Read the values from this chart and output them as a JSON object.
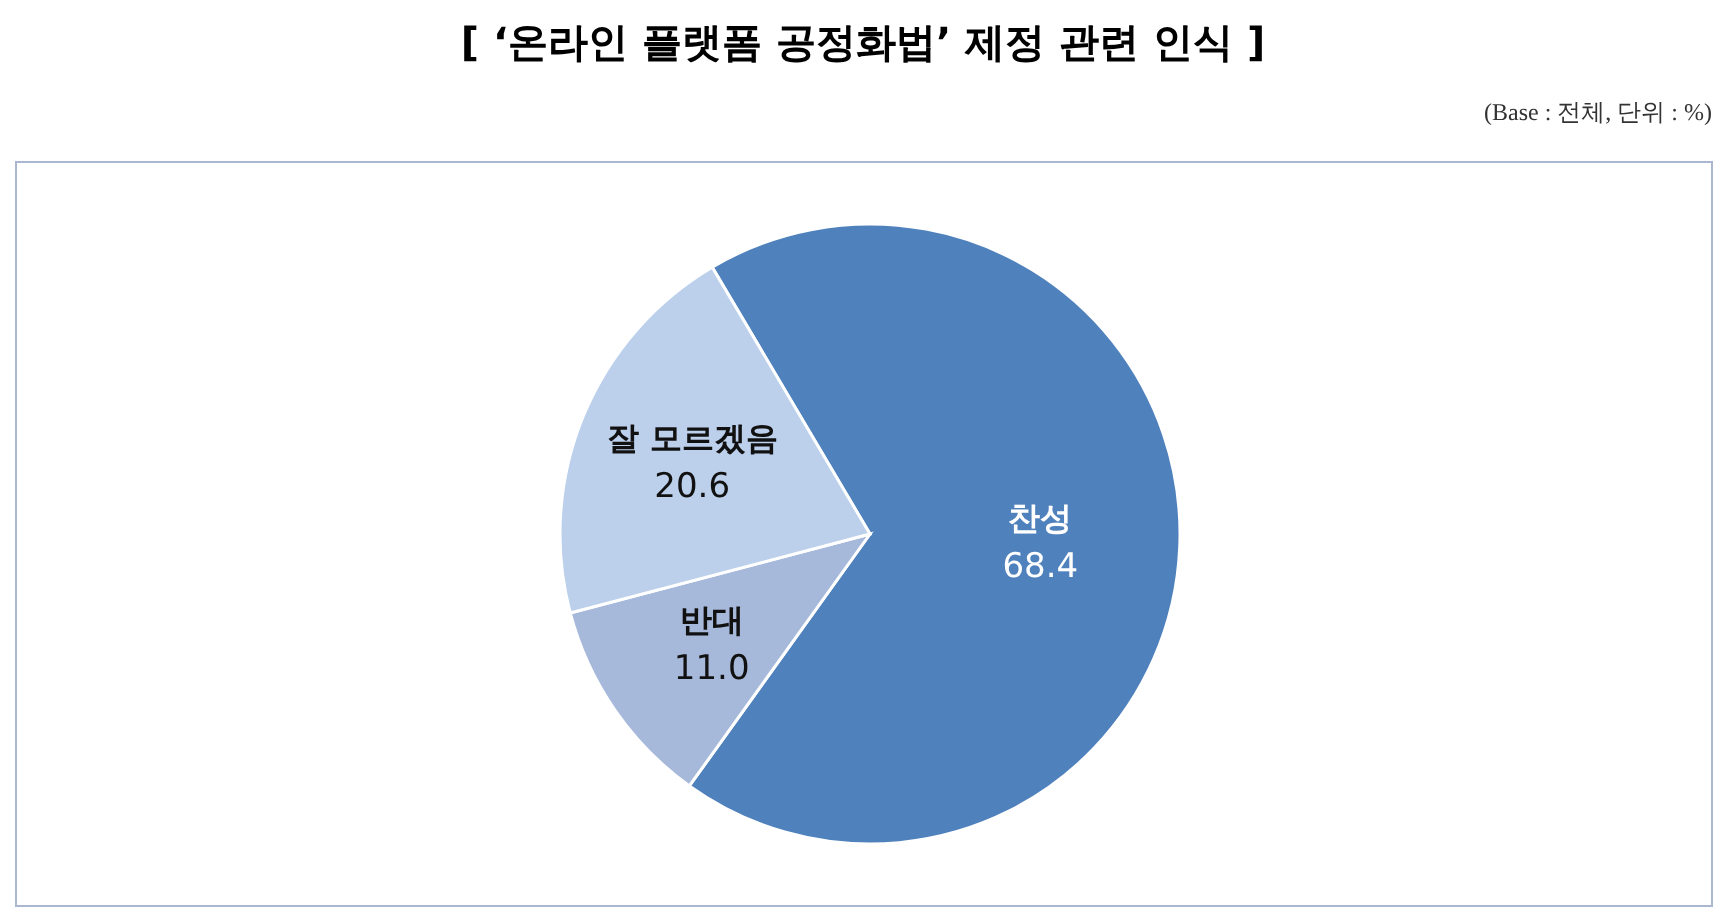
{
  "chart_data": {
    "type": "pie",
    "title": "[ ‘온라인 플랫폼 공정화법’ 제정 관련 인식 ]",
    "annotations": [
      "(Base : 전체, 단위 : %)"
    ],
    "categories": [
      "찬성",
      "반대",
      "잘 모르겠음"
    ],
    "values": [
      68.4,
      11.0,
      20.6
    ],
    "value_labels": [
      "68.4",
      "11.0",
      "20.6"
    ],
    "colors": [
      "#4f81bd",
      "#a7b9db",
      "#bcd0ec"
    ]
  }
}
